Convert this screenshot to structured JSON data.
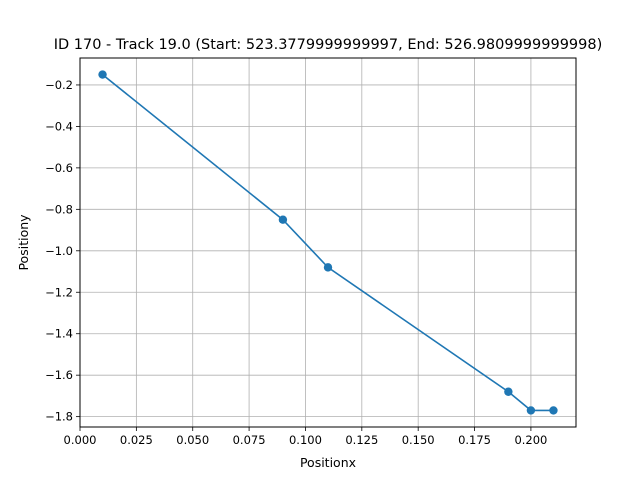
{
  "chart_data": {
    "type": "line",
    "title": "ID 170 - Track 19.0 (Start: 523.3779999999997, End: 526.9809999999998)",
    "xlabel": "Positionx",
    "ylabel": "Positiony",
    "xlim": [
      0.0,
      0.22
    ],
    "ylim": [
      -1.85,
      -0.07
    ],
    "xticks": [
      0.0,
      0.025,
      0.05,
      0.075,
      0.1,
      0.125,
      0.15,
      0.175,
      0.2
    ],
    "xtick_labels": [
      "0.000",
      "0.025",
      "0.050",
      "0.075",
      "0.100",
      "0.125",
      "0.150",
      "0.175",
      "0.200"
    ],
    "yticks": [
      -0.2,
      -0.4,
      -0.6,
      -0.8,
      -1.0,
      -1.2,
      -1.4,
      -1.6,
      -1.8
    ],
    "ytick_labels": [
      "−0.2",
      "−0.4",
      "−0.6",
      "−0.8",
      "−1.0",
      "−1.2",
      "−1.4",
      "−1.6",
      "−1.8"
    ],
    "grid": true,
    "marker": "circle",
    "series": [
      {
        "color": "#1f77b4",
        "x": [
          0.01,
          0.09,
          0.11,
          0.19,
          0.2,
          0.21
        ],
        "y": [
          -0.15,
          -0.85,
          -1.08,
          -1.68,
          -1.77,
          -1.77
        ]
      }
    ]
  }
}
